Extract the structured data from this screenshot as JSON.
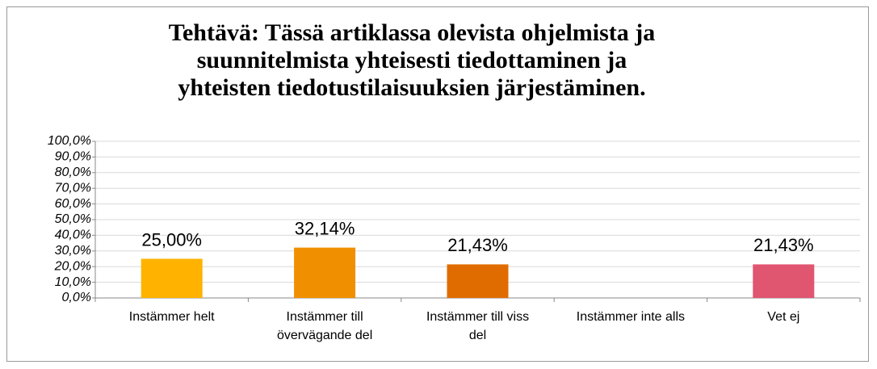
{
  "chart_data": {
    "type": "bar",
    "title": "Tehtävä: Tässä artiklassa olevista ohjelmista ja\nsuunnitelmista yhteisesti tiedottaminen ja\nyhteisten tiedotustilaisuuksien järjestäminen.",
    "categories": [
      "Instämmer helt",
      "Instämmer till\növervägande del",
      "Instämmer till viss\ndel",
      "Instämmer inte alls",
      "Vet ej"
    ],
    "values": [
      25,
      32.14,
      21.43,
      0,
      21.43
    ],
    "value_labels": [
      "25,00%",
      "32,14%",
      "21,43%",
      null,
      "21,43%"
    ],
    "colors": [
      "#ffb300",
      "#f09000",
      "#e06c00",
      "#e06c00",
      "#e05570"
    ],
    "ylim": [
      0,
      100
    ],
    "yticks": [
      {
        "value": 0,
        "label": "0,0%"
      },
      {
        "value": 10,
        "label": "10,0%"
      },
      {
        "value": 20,
        "label": "20,0%"
      },
      {
        "value": 30,
        "label": "30,0%"
      },
      {
        "value": 40,
        "label": "40,0%"
      },
      {
        "value": 50,
        "label": "50,0%"
      },
      {
        "value": 60,
        "label": "60,0%"
      },
      {
        "value": 70,
        "label": "70,0%"
      },
      {
        "value": 80,
        "label": "80,0%"
      },
      {
        "value": 90,
        "label": "90,0%"
      },
      {
        "value": 100,
        "label": "100,0%"
      }
    ],
    "grid": true
  }
}
